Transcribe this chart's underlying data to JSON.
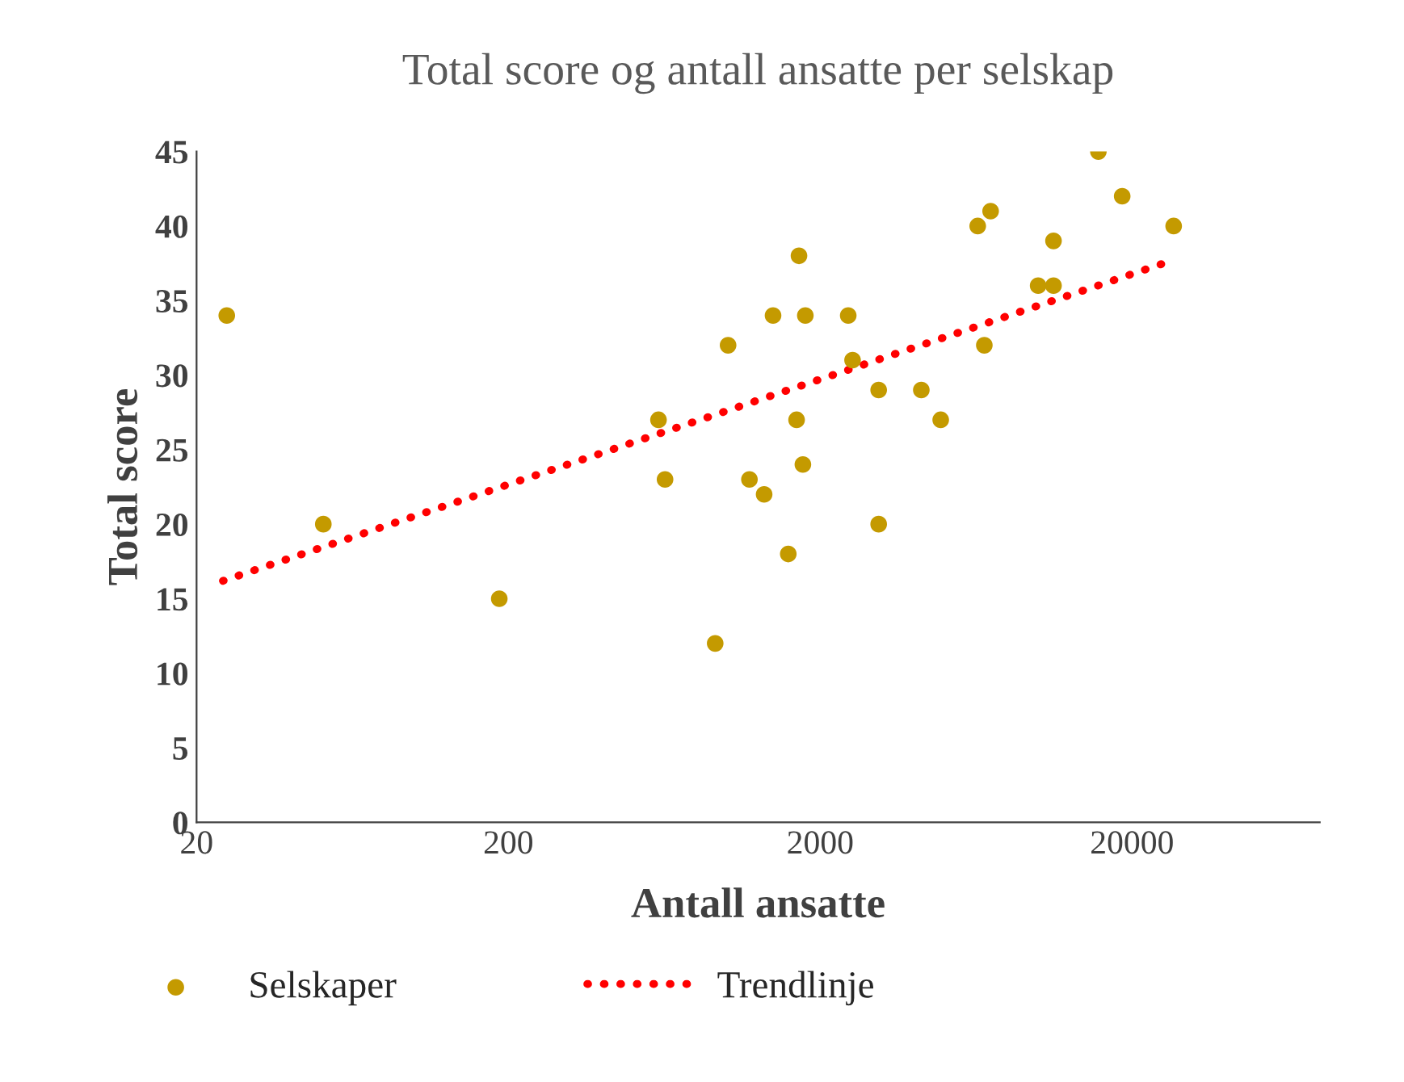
{
  "chart_data": {
    "type": "scatter",
    "title": "Total score og antall ansatte per selskap",
    "xlabel": "Antall ansatte",
    "ylabel": "Total score",
    "log": "x",
    "xlim": [
      20,
      80000
    ],
    "xticks": [
      20,
      200,
      2000,
      20000
    ],
    "ylim": [
      0,
      45
    ],
    "yticks": [
      0,
      5,
      10,
      15,
      20,
      25,
      30,
      35,
      40,
      45
    ],
    "grid": false,
    "legend": "bottom left",
    "series": [
      {
        "name": "Selskaper",
        "color": "#c49a00",
        "marker": "circle",
        "x": [
          25,
          51,
          187,
          606,
          636,
          921,
          1013,
          1412,
          1186,
          1322,
          1710,
          1792,
          2460,
          2540,
          3080,
          4220,
          4870,
          1680,
          1760,
          1580,
          3080,
          6400,
          7040,
          6720,
          10000,
          11200,
          11200,
          15600,
          18600,
          27200
        ],
        "values": [
          34,
          20,
          15,
          27,
          23,
          12,
          32,
          34,
          23,
          22,
          38,
          34,
          34,
          31,
          29,
          29,
          27,
          27,
          24,
          18,
          20,
          40,
          41,
          32,
          36,
          36,
          39,
          45,
          42,
          40
        ]
      },
      {
        "name": "Trendlinje",
        "type": "line",
        "color": "#ff0000",
        "line_style": "dotted",
        "x": [
          24.3,
          27000
        ],
        "values": [
          16.2,
          37.7
        ]
      }
    ]
  }
}
